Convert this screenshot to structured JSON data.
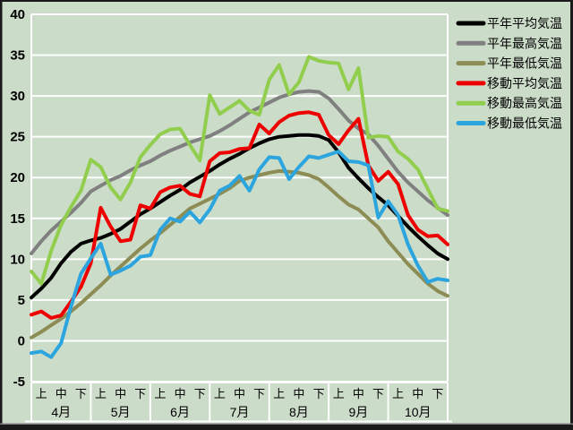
{
  "window": {
    "background": "#CBDCC8",
    "frame_dark": "#1A1A1A",
    "frame_gray": "#7F7F7F",
    "grid_color": "#FFFFFF",
    "text_color": "#000000"
  },
  "chart_data": {
    "type": "line",
    "title": "",
    "xlabel": "",
    "ylabel": "",
    "ylim": [
      -5,
      40
    ],
    "ytick_step": 5,
    "y_ticks": [
      40,
      35,
      30,
      25,
      20,
      15,
      10,
      5,
      0,
      -5
    ],
    "grid": true,
    "legend_position": "right",
    "x_axis": {
      "months": [
        "4月",
        "5月",
        "6月",
        "7月",
        "8月",
        "9月",
        "10月"
      ],
      "periods": [
        "上",
        "中",
        "下"
      ]
    },
    "series": [
      {
        "name": "平年平均気温",
        "color": "#000000",
        "values": [
          5.3,
          6.4,
          7.7,
          9.5,
          10.9,
          11.9,
          12.3,
          12.6,
          13.1,
          13.7,
          14.6,
          15.5,
          16.2,
          17.0,
          17.8,
          18.5,
          19.4,
          20.1,
          20.8,
          21.6,
          22.3,
          22.9,
          23.6,
          24.2,
          24.7,
          25.0,
          25.1,
          25.2,
          25.2,
          25.1,
          24.6,
          23.1,
          21.2,
          19.9,
          18.7,
          17.6,
          16.6,
          15.3,
          14.0,
          12.8,
          11.7,
          10.7,
          10.0
        ]
      },
      {
        "name": "平年最高気温",
        "color": "#808080",
        "values": [
          10.7,
          12.2,
          13.5,
          14.6,
          15.7,
          16.9,
          18.3,
          19.0,
          19.7,
          20.2,
          20.9,
          21.5,
          22.0,
          22.7,
          23.3,
          23.8,
          24.3,
          24.7,
          25.1,
          25.7,
          26.4,
          27.2,
          28.0,
          28.6,
          29.2,
          29.8,
          30.2,
          30.5,
          30.6,
          30.5,
          29.7,
          28.4,
          27.0,
          26.0,
          25.3,
          23.9,
          22.3,
          20.7,
          19.4,
          18.3,
          17.2,
          16.3,
          15.4
        ]
      },
      {
        "name": "平年最低気温",
        "color": "#8C8C54",
        "values": [
          0.4,
          1.1,
          1.9,
          2.7,
          3.6,
          4.6,
          5.7,
          6.8,
          8.0,
          9.1,
          10.2,
          11.3,
          12.3,
          13.2,
          14.2,
          15.2,
          16.2,
          16.8,
          17.4,
          18.0,
          18.7,
          19.6,
          20.0,
          20.3,
          20.6,
          20.8,
          20.7,
          20.6,
          20.3,
          19.8,
          18.8,
          17.7,
          16.7,
          16.1,
          15.0,
          13.9,
          12.2,
          10.8,
          9.4,
          8.2,
          7.0,
          6.1,
          5.5
        ]
      },
      {
        "name": "移動平均気温",
        "color": "#EE0000",
        "values": [
          3.2,
          3.6,
          2.8,
          3.1,
          4.8,
          6.6,
          9.5,
          16.3,
          14.0,
          12.2,
          12.4,
          16.6,
          16.2,
          18.2,
          18.8,
          19.0,
          18.0,
          17.7,
          22.0,
          23.0,
          23.1,
          23.5,
          23.6,
          26.5,
          25.4,
          26.8,
          27.6,
          27.9,
          28.0,
          27.7,
          25.2,
          24.1,
          25.8,
          27.2,
          21.5,
          19.6,
          20.7,
          19.2,
          15.4,
          13.6,
          12.8,
          12.9,
          11.8
        ]
      },
      {
        "name": "移動最高気温",
        "color": "#92CE4E",
        "values": [
          8.5,
          7.0,
          11.0,
          14.2,
          16.4,
          18.4,
          22.2,
          21.3,
          18.8,
          17.3,
          19.4,
          22.5,
          24.0,
          25.3,
          25.9,
          26.0,
          24.0,
          22.1,
          30.1,
          27.8,
          28.6,
          29.4,
          28.2,
          27.7,
          32.0,
          33.8,
          30.2,
          31.7,
          34.8,
          34.3,
          34.1,
          34.0,
          30.8,
          33.4,
          24.9,
          25.1,
          25.0,
          23.2,
          22.3,
          21.0,
          18.6,
          16.2,
          15.9
        ]
      },
      {
        "name": "移動最低気温",
        "color": "#2CA5DF",
        "values": [
          -1.5,
          -1.3,
          -2.0,
          -0.3,
          4.2,
          8.2,
          10.1,
          11.9,
          8.1,
          8.6,
          9.2,
          10.3,
          10.5,
          13.6,
          15.0,
          14.6,
          15.8,
          14.5,
          16.1,
          18.4,
          19.0,
          20.2,
          18.4,
          21.0,
          22.5,
          22.4,
          19.8,
          21.3,
          22.6,
          22.4,
          22.8,
          23.2,
          22.0,
          21.9,
          21.5,
          15.1,
          17.1,
          15.4,
          11.8,
          9.2,
          7.2,
          7.6,
          7.4
        ]
      }
    ]
  }
}
